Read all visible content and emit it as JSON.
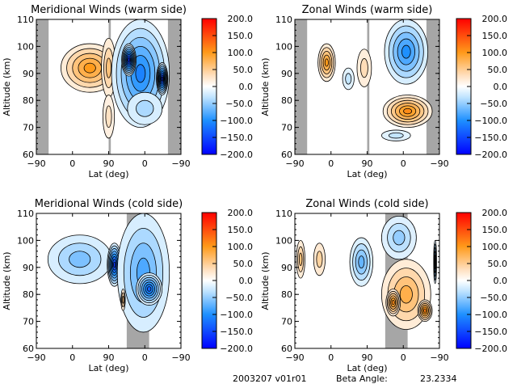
{
  "footer": {
    "date_version": "2003207 v01r01",
    "beta_label": "Beta Angle:",
    "beta_value": "23.2334"
  },
  "chart_data": [
    {
      "type": "heatmap",
      "title": "Meridional Winds (warm side)",
      "xlabel": "Lat (deg)",
      "ylabel": "Altitude (km)",
      "xticks": [
        "-90",
        "0",
        "90",
        "0",
        "-90"
      ],
      "yticks": [
        60,
        70,
        80,
        90,
        100,
        110
      ],
      "ylim": [
        60,
        110
      ],
      "colorbar": {
        "min": -200,
        "max": 200,
        "ticks": [
          "200.0",
          "150.0",
          "100.0",
          "50.0",
          "0.0",
          "-50.0",
          "-100.0",
          "-150.0",
          "-200.0"
        ]
      },
      "no_data_lat_ranges": [
        [
          -90,
          -67
        ],
        [
          63,
          90
        ]
      ],
      "features": [
        {
          "region": "left half",
          "sign": "positive",
          "peak": 100,
          "alt_range": [
            83,
            102
          ],
          "lat_range": [
            -67,
            90
          ]
        },
        {
          "region": "right half",
          "sign": "negative",
          "peak": -170,
          "alt_range": [
            65,
            110
          ],
          "lat_range": [
            90,
            -63
          ]
        }
      ]
    },
    {
      "type": "heatmap",
      "title": "Zonal Winds (warm side)",
      "xlabel": "Lat (deg)",
      "ylabel": "Altitude (km)",
      "xticks": [
        "-90",
        "0",
        "90",
        "0",
        "-90"
      ],
      "yticks": [
        60,
        70,
        80,
        90,
        100,
        110
      ],
      "ylim": [
        60,
        110
      ],
      "colorbar": {
        "min": -200,
        "max": 200,
        "ticks": [
          "200.0",
          "150.0",
          "100.0",
          "50.0",
          "0.0",
          "-50.0",
          "-100.0",
          "-150.0",
          "-200.0"
        ]
      },
      "no_data_lat_ranges": [
        [
          -90,
          -67
        ],
        [
          63,
          90
        ]
      ],
      "features": [
        {
          "region": "left edge",
          "sign": "positive",
          "peak": 100,
          "alt_range": [
            85,
            101
          ]
        },
        {
          "region": "right upper",
          "sign": "negative",
          "peak": -110,
          "alt_range": [
            85,
            110
          ]
        },
        {
          "region": "right lower",
          "sign": "positive",
          "peak": 110,
          "alt_range": [
            68,
            84
          ]
        }
      ]
    },
    {
      "type": "heatmap",
      "title": "Meridional Winds (cold side)",
      "xlabel": "Lat (deg)",
      "ylabel": "Altitude (km)",
      "xticks": [
        "-90",
        "0",
        "90",
        "0",
        "-90"
      ],
      "yticks": [
        60,
        70,
        80,
        90,
        100,
        110
      ],
      "ylim": [
        60,
        110
      ],
      "colorbar": {
        "min": -200,
        "max": 200,
        "ticks": [
          "200.0",
          "150.0",
          "100.0",
          "50.0",
          "0.0",
          "-50.0",
          "-100.0",
          "-150.0",
          "-200.0"
        ]
      },
      "no_data_lat_ranges": [
        [
          60,
          90
        ],
        [
          90,
          112
        ]
      ],
      "features": [
        {
          "region": "left",
          "sign": "negative",
          "peak": -150,
          "alt_range": [
            83,
            102
          ]
        },
        {
          "region": "right",
          "sign": "negative",
          "peak": -130,
          "alt_range": [
            65,
            110
          ]
        }
      ]
    },
    {
      "type": "heatmap",
      "title": "Zonal Winds (cold side)",
      "xlabel": "Lat (deg)",
      "ylabel": "Altitude (km)",
      "xticks": [
        "-90",
        "0",
        "90",
        "0",
        "-90"
      ],
      "yticks": [
        60,
        70,
        80,
        90,
        100,
        110
      ],
      "ylim": [
        60,
        110
      ],
      "colorbar": {
        "min": -200,
        "max": 200,
        "ticks": [
          "200.0",
          "150.0",
          "100.0",
          "50.0",
          "0.0",
          "-50.0",
          "-100.0",
          "-150.0",
          "-200.0"
        ]
      },
      "no_data_lat_ranges": [
        [
          60,
          90
        ],
        [
          90,
          112
        ]
      ],
      "features": [
        {
          "region": "left",
          "sign": "mixed",
          "peak": 80,
          "alt_range": [
            83,
            102
          ]
        },
        {
          "region": "right upper",
          "sign": "negative",
          "peak": -60,
          "alt_range": [
            88,
            110
          ]
        },
        {
          "region": "right lower",
          "sign": "positive",
          "peak": 120,
          "alt_range": [
            67,
            88
          ]
        }
      ]
    }
  ]
}
